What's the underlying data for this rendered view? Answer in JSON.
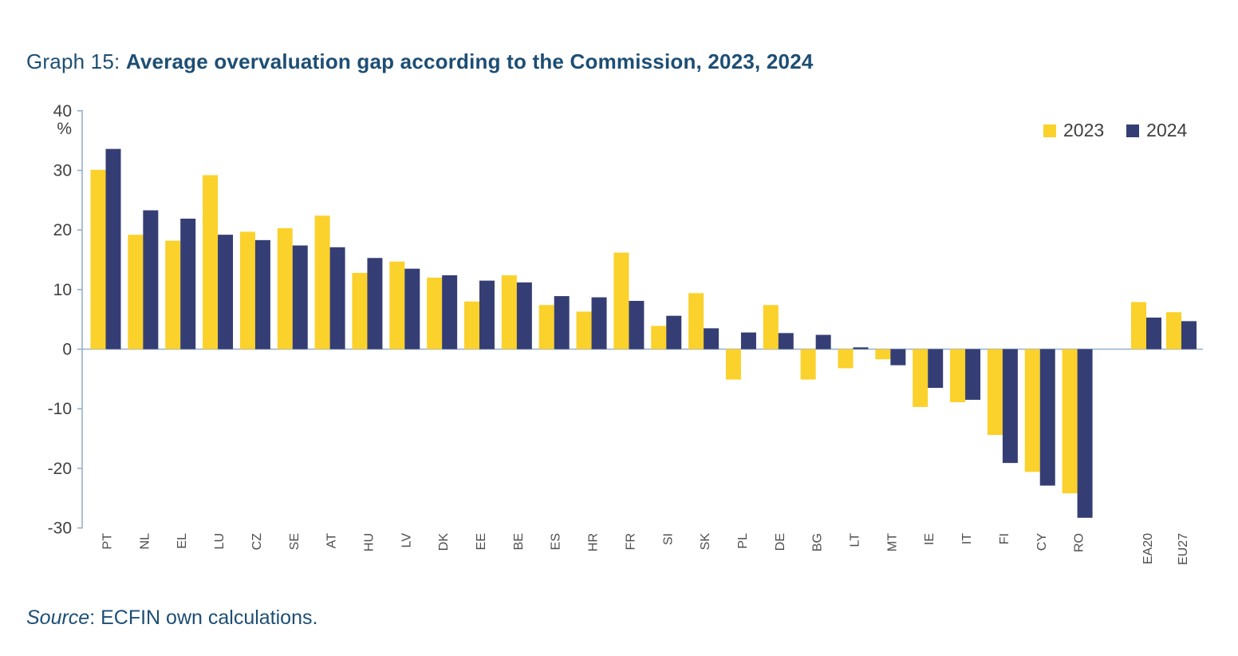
{
  "title": {
    "prefix": "Graph 15: ",
    "main": "Average overvaluation gap according to the Commission, 2023, 2024"
  },
  "source": {
    "label": "Source",
    "rest": ": ECFIN own calculations."
  },
  "colors": {
    "series_2023": "#FBD12B",
    "series_2024": "#353E74",
    "axis_line": "#94AFCB",
    "title_text": "#1D4E74",
    "tick_text": "#404040",
    "category_text": "#4D4D4D"
  },
  "chart_data": {
    "type": "bar",
    "title": "Average overvaluation gap according to the Commission, 2023, 2024",
    "unit_label": "%",
    "ylim": [
      -30,
      40
    ],
    "yticks": [
      40,
      30,
      20,
      10,
      0,
      -10,
      -20,
      -30
    ],
    "grid": false,
    "legend_position": "top-right",
    "categories": [
      "PT",
      "NL",
      "EL",
      "LU",
      "CZ",
      "SE",
      "AT",
      "HU",
      "LV",
      "DK",
      "EE",
      "BE",
      "ES",
      "HR",
      "FR",
      "SI",
      "SK",
      "PL",
      "DE",
      "BG",
      "LT",
      "MT",
      "IE",
      "IT",
      "FI",
      "CY",
      "RO",
      "EA20",
      "EU27"
    ],
    "aggregate_categories": [
      "EA20",
      "EU27"
    ],
    "series": [
      {
        "name": "2023",
        "color": "#FBD12B",
        "values": [
          30.1,
          19.2,
          18.2,
          29.2,
          19.7,
          20.3,
          22.4,
          12.8,
          14.7,
          12.0,
          8.0,
          12.4,
          7.4,
          6.3,
          16.2,
          3.9,
          9.4,
          -5.1,
          7.4,
          -5.1,
          -3.2,
          -1.7,
          -9.7,
          -8.9,
          -14.4,
          -20.6,
          -24.2,
          7.9,
          6.2
        ]
      },
      {
        "name": "2024",
        "color": "#353E74",
        "values": [
          33.6,
          23.3,
          21.9,
          19.2,
          18.3,
          17.4,
          17.1,
          15.3,
          13.5,
          12.4,
          11.5,
          11.2,
          8.9,
          8.7,
          8.1,
          5.6,
          3.5,
          2.8,
          2.7,
          2.4,
          0.3,
          -2.7,
          -6.5,
          -8.5,
          -19.1,
          -22.9,
          -28.3,
          5.3,
          4.7
        ]
      }
    ]
  }
}
